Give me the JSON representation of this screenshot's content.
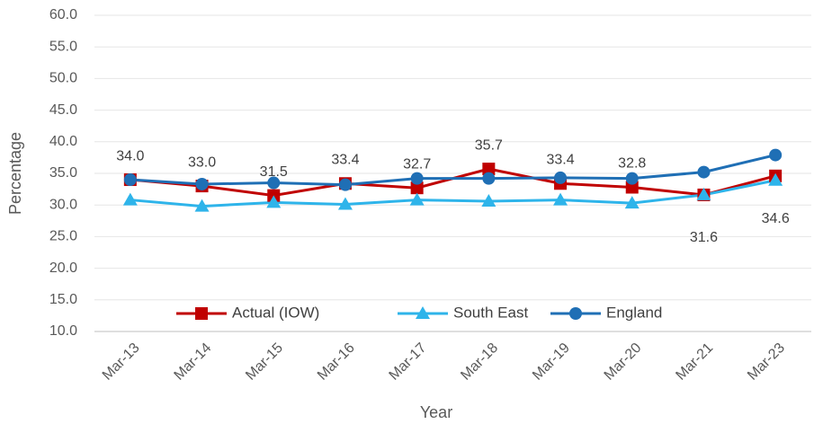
{
  "chart_data": {
    "type": "line",
    "categories": [
      "Mar-13",
      "Mar-14",
      "Mar-15",
      "Mar-16",
      "Mar-17",
      "Mar-18",
      "Mar-19",
      "Mar-20",
      "Mar-21",
      "Mar-23"
    ],
    "x_label": "Year",
    "y_label": "Percentage",
    "ylim": [
      10,
      60
    ],
    "yticks": [
      {
        "value": 10,
        "label": "10.0"
      },
      {
        "value": 15,
        "label": "15.0"
      },
      {
        "value": 20,
        "label": "20.0"
      },
      {
        "value": 25,
        "label": "25.0"
      },
      {
        "value": 30,
        "label": "30.0"
      },
      {
        "value": 35,
        "label": "35.0"
      },
      {
        "value": 40,
        "label": "40.0"
      },
      {
        "value": 45,
        "label": "45.0"
      },
      {
        "value": 50,
        "label": "50.0"
      },
      {
        "value": 55,
        "label": "55.0"
      },
      {
        "value": 60,
        "label": "60.0"
      }
    ],
    "grid": true,
    "series": [
      {
        "name": "Actual (IOW)",
        "color": "#c00000",
        "marker": "square",
        "values": [
          34.0,
          33.0,
          31.5,
          33.4,
          32.7,
          35.7,
          33.4,
          32.8,
          31.6,
          34.6
        ],
        "value_labels": [
          "34.0",
          "33.0",
          "31.5",
          "33.4",
          "32.7",
          "35.7",
          "33.4",
          "32.8",
          "31.6",
          "34.6"
        ]
      },
      {
        "name": "South East",
        "color": "#2eb4ea",
        "marker": "triangle",
        "values": [
          30.8,
          29.8,
          30.4,
          30.1,
          30.8,
          30.6,
          30.8,
          30.3,
          31.6,
          33.9
        ]
      },
      {
        "name": "England",
        "color": "#1f6fb5",
        "marker": "circle",
        "values": [
          34.0,
          33.3,
          33.5,
          33.2,
          34.2,
          34.2,
          34.3,
          34.2,
          35.2,
          37.9
        ]
      }
    ]
  }
}
